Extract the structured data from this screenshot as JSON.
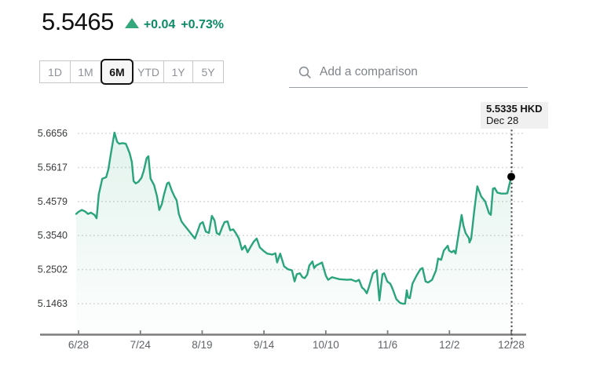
{
  "header": {
    "price": "5.5465",
    "change": "+0.04",
    "change_pct": "+0.73%"
  },
  "toolbar": {
    "ranges": [
      {
        "label": "1D",
        "selected": false
      },
      {
        "label": "1M",
        "selected": false
      },
      {
        "label": "6M",
        "selected": true
      },
      {
        "label": "YTD",
        "selected": false
      },
      {
        "label": "1Y",
        "selected": false
      },
      {
        "label": "5Y",
        "selected": false
      }
    ],
    "search_placeholder": "Add a comparison"
  },
  "crosshair_tooltip": {
    "price": "5.5335 HKD",
    "date": "Dec 28"
  },
  "colors": {
    "line_green": "#2aa47c",
    "fill_green": "#34a87b",
    "change_green": "#0d8a66",
    "triangle_green": "#35a77d",
    "gridline_gray": "#d7d7d7",
    "axis_gray": "#7c7c7c",
    "label_gray": "#5f6368",
    "crosshair_gray": "#4a4a4a"
  },
  "chart_data": {
    "type": "area",
    "currency": "HKD",
    "y_tick_labels": [
      "5.6656",
      "5.5617",
      "5.4579",
      "5.3540",
      "5.2502",
      "5.1463"
    ],
    "y_tick_values": [
      5.6656,
      5.5617,
      5.4579,
      5.354,
      5.2502,
      5.1463
    ],
    "x_tick_labels": [
      "6/28",
      "7/24",
      "8/19",
      "9/14",
      "10/10",
      "11/6",
      "12/2",
      "12/28"
    ],
    "ylim": [
      5.1463,
      5.6656
    ],
    "grid": true,
    "last_point": {
      "value": 5.5335,
      "date": "Dec 28",
      "label": "5.5335 HKD"
    },
    "points": [
      [
        0.0,
        5.42
      ],
      [
        0.005,
        5.426
      ],
      [
        0.013,
        5.432
      ],
      [
        0.02,
        5.428
      ],
      [
        0.027,
        5.42
      ],
      [
        0.034,
        5.424
      ],
      [
        0.042,
        5.417
      ],
      [
        0.047,
        5.407
      ],
      [
        0.052,
        5.48
      ],
      [
        0.06,
        5.527
      ],
      [
        0.069,
        5.532
      ],
      [
        0.074,
        5.556
      ],
      [
        0.079,
        5.598
      ],
      [
        0.085,
        5.645
      ],
      [
        0.088,
        5.668
      ],
      [
        0.094,
        5.64
      ],
      [
        0.099,
        5.634
      ],
      [
        0.107,
        5.636
      ],
      [
        0.114,
        5.634
      ],
      [
        0.117,
        5.625
      ],
      [
        0.123,
        5.605
      ],
      [
        0.128,
        5.578
      ],
      [
        0.132,
        5.52
      ],
      [
        0.137,
        5.513
      ],
      [
        0.143,
        5.518
      ],
      [
        0.15,
        5.53
      ],
      [
        0.155,
        5.55
      ],
      [
        0.162,
        5.59
      ],
      [
        0.166,
        5.596
      ],
      [
        0.171,
        5.528
      ],
      [
        0.179,
        5.508
      ],
      [
        0.186,
        5.473
      ],
      [
        0.191,
        5.432
      ],
      [
        0.197,
        5.45
      ],
      [
        0.202,
        5.48
      ],
      [
        0.209,
        5.513
      ],
      [
        0.213,
        5.516
      ],
      [
        0.22,
        5.49
      ],
      [
        0.226,
        5.473
      ],
      [
        0.231,
        5.461
      ],
      [
        0.236,
        5.42
      ],
      [
        0.242,
        5.397
      ],
      [
        0.249,
        5.385
      ],
      [
        0.258,
        5.37
      ],
      [
        0.265,
        5.358
      ],
      [
        0.273,
        5.345
      ],
      [
        0.28,
        5.37
      ],
      [
        0.285,
        5.39
      ],
      [
        0.291,
        5.395
      ],
      [
        0.298,
        5.366
      ],
      [
        0.305,
        5.362
      ],
      [
        0.312,
        5.414
      ],
      [
        0.318,
        5.4
      ],
      [
        0.323,
        5.362
      ],
      [
        0.329,
        5.357
      ],
      [
        0.336,
        5.38
      ],
      [
        0.341,
        5.395
      ],
      [
        0.348,
        5.397
      ],
      [
        0.354,
        5.37
      ],
      [
        0.361,
        5.373
      ],
      [
        0.368,
        5.359
      ],
      [
        0.374,
        5.345
      ],
      [
        0.381,
        5.311
      ],
      [
        0.388,
        5.323
      ],
      [
        0.394,
        5.303
      ],
      [
        0.401,
        5.32
      ],
      [
        0.408,
        5.335
      ],
      [
        0.415,
        5.345
      ],
      [
        0.422,
        5.318
      ],
      [
        0.43,
        5.308
      ],
      [
        0.439,
        5.299
      ],
      [
        0.451,
        5.296
      ],
      [
        0.458,
        5.3
      ],
      [
        0.462,
        5.272
      ],
      [
        0.469,
        5.299
      ],
      [
        0.478,
        5.26
      ],
      [
        0.487,
        5.251
      ],
      [
        0.496,
        5.248
      ],
      [
        0.502,
        5.214
      ],
      [
        0.507,
        5.236
      ],
      [
        0.514,
        5.239
      ],
      [
        0.52,
        5.227
      ],
      [
        0.525,
        5.224
      ],
      [
        0.531,
        5.235
      ],
      [
        0.536,
        5.263
      ],
      [
        0.543,
        5.275
      ],
      [
        0.547,
        5.255
      ],
      [
        0.552,
        5.263
      ],
      [
        0.56,
        5.268
      ],
      [
        0.565,
        5.272
      ],
      [
        0.574,
        5.231
      ],
      [
        0.579,
        5.219
      ],
      [
        0.588,
        5.227
      ],
      [
        0.596,
        5.224
      ],
      [
        0.605,
        5.221
      ],
      [
        0.614,
        5.22
      ],
      [
        0.623,
        5.219
      ],
      [
        0.632,
        5.22
      ],
      [
        0.643,
        5.214
      ],
      [
        0.65,
        5.219
      ],
      [
        0.657,
        5.195
      ],
      [
        0.662,
        5.19
      ],
      [
        0.668,
        5.178
      ],
      [
        0.673,
        5.197
      ],
      [
        0.682,
        5.239
      ],
      [
        0.691,
        5.248
      ],
      [
        0.697,
        5.156
      ],
      [
        0.704,
        5.236
      ],
      [
        0.708,
        5.239
      ],
      [
        0.715,
        5.214
      ],
      [
        0.722,
        5.207
      ],
      [
        0.727,
        5.192
      ],
      [
        0.736,
        5.16
      ],
      [
        0.744,
        5.149
      ],
      [
        0.751,
        5.146
      ],
      [
        0.756,
        5.146
      ],
      [
        0.76,
        5.187
      ],
      [
        0.763,
        5.165
      ],
      [
        0.767,
        5.163
      ],
      [
        0.773,
        5.207
      ],
      [
        0.782,
        5.231
      ],
      [
        0.791,
        5.251
      ],
      [
        0.796,
        5.255
      ],
      [
        0.803,
        5.214
      ],
      [
        0.809,
        5.211
      ],
      [
        0.818,
        5.219
      ],
      [
        0.827,
        5.248
      ],
      [
        0.832,
        5.284
      ],
      [
        0.839,
        5.28
      ],
      [
        0.845,
        5.308
      ],
      [
        0.854,
        5.323
      ],
      [
        0.857,
        5.308
      ],
      [
        0.863,
        5.303
      ],
      [
        0.868,
        5.308
      ],
      [
        0.872,
        5.299
      ],
      [
        0.879,
        5.36
      ],
      [
        0.886,
        5.417
      ],
      [
        0.89,
        5.385
      ],
      [
        0.895,
        5.362
      ],
      [
        0.903,
        5.345
      ],
      [
        0.904,
        5.333
      ],
      [
        0.908,
        5.345
      ],
      [
        0.915,
        5.43
      ],
      [
        0.922,
        5.504
      ],
      [
        0.931,
        5.473
      ],
      [
        0.94,
        5.458
      ],
      [
        0.949,
        5.422
      ],
      [
        0.953,
        5.417
      ],
      [
        0.958,
        5.497
      ],
      [
        0.962,
        5.499
      ],
      [
        0.968,
        5.485
      ],
      [
        0.977,
        5.482
      ],
      [
        0.986,
        5.482
      ],
      [
        0.991,
        5.483
      ],
      [
        1.0,
        5.5335
      ]
    ]
  }
}
